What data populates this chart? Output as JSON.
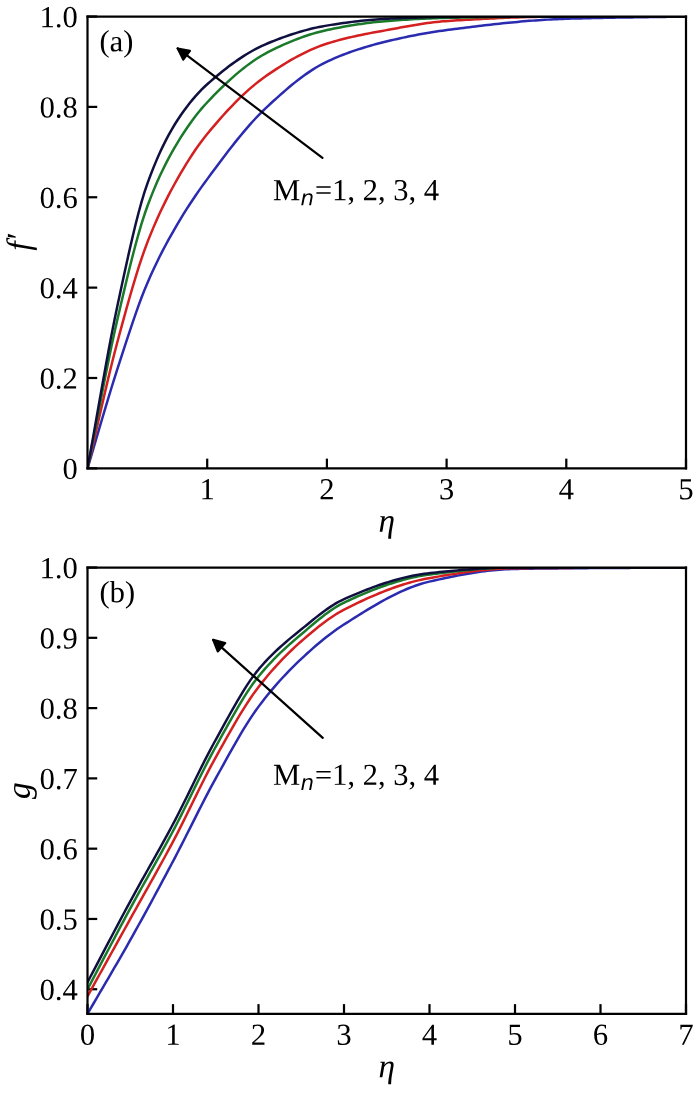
{
  "chart_data": [
    {
      "type": "line",
      "xlabel": "η",
      "ylabel": "f′",
      "xlim": [
        0,
        5
      ],
      "ylim": [
        0,
        1.0
      ],
      "xticks": [
        1,
        2,
        3,
        4,
        5
      ],
      "yticks": [
        0,
        0.2,
        0.4,
        0.6,
        0.8,
        {
          "value": 1.0,
          "label": "1.0"
        }
      ],
      "grid": false,
      "legend": false,
      "x": [
        0,
        0.25,
        0.5,
        0.75,
        1,
        1.5,
        2,
        2.5,
        3,
        4,
        5
      ],
      "annotations": [
        "(a)",
        "M$_{n}$=1, 2, 3, 4"
      ],
      "series": [
        {
          "color": "#2b2bb0",
          "values": [
            0,
            0.22,
            0.41,
            0.54,
            0.64,
            0.8,
            0.9,
            0.945,
            0.97,
            0.995,
            1.0
          ]
        },
        {
          "color": "#d42020",
          "values": [
            0,
            0.28,
            0.5,
            0.64,
            0.74,
            0.87,
            0.94,
            0.97,
            0.99,
            1.0,
            1.0
          ]
        },
        {
          "color": "#1a7a2a",
          "values": [
            0,
            0.33,
            0.58,
            0.72,
            0.81,
            0.92,
            0.97,
            0.99,
            0.997,
            1.0,
            1.0
          ]
        },
        {
          "color": "#101040",
          "values": [
            0,
            0.36,
            0.63,
            0.77,
            0.85,
            0.94,
            0.98,
            0.995,
            0.999,
            1.0,
            1.0
          ]
        }
      ]
    },
    {
      "type": "line",
      "xlabel": "η",
      "ylabel": "g",
      "xlim": [
        0,
        7
      ],
      "ylim": [
        0.365,
        1.0
      ],
      "xticks": [
        0,
        1,
        2,
        3,
        4,
        5,
        6,
        7
      ],
      "yticks": [
        0.4,
        0.5,
        0.6,
        0.7,
        0.8,
        0.9,
        {
          "value": 1.0,
          "label": "1.0"
        }
      ],
      "grid": false,
      "legend": false,
      "x": [
        0,
        0.5,
        1,
        1.5,
        2,
        2.5,
        3,
        4,
        5,
        7
      ],
      "annotations": [
        "(b)",
        "M$_{n}$=1, 2, 3, 4"
      ],
      "series": [
        {
          "color": "#2b2bb0",
          "values": [
            0.365,
            0.47,
            0.582,
            0.7,
            0.802,
            0.87,
            0.919,
            0.98,
            0.998,
            1.0
          ]
        },
        {
          "color": "#d42020",
          "values": [
            0.39,
            0.5,
            0.61,
            0.73,
            0.83,
            0.895,
            0.94,
            0.985,
            0.999,
            1.0
          ]
        },
        {
          "color": "#1a7a2a",
          "values": [
            0.4,
            0.515,
            0.625,
            0.745,
            0.845,
            0.905,
            0.95,
            0.99,
            1.0,
            1.0
          ]
        },
        {
          "color": "#101040",
          "values": [
            0.41,
            0.525,
            0.635,
            0.755,
            0.855,
            0.912,
            0.955,
            0.992,
            1.0,
            1.0
          ]
        }
      ]
    }
  ]
}
